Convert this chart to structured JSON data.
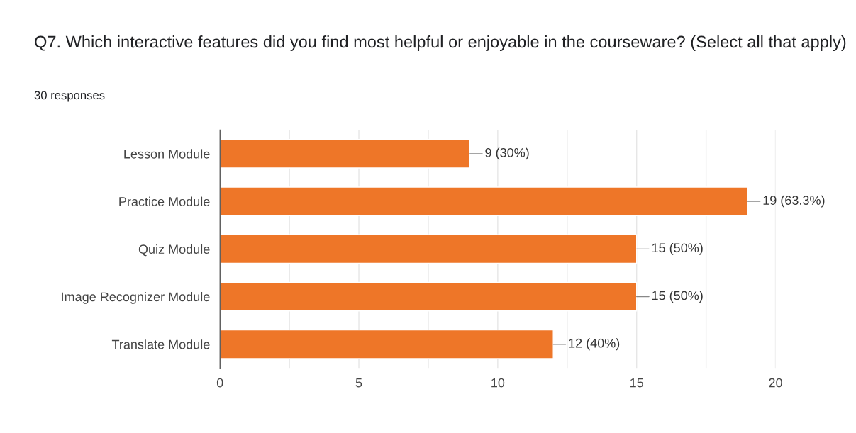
{
  "chart_data": {
    "type": "bar",
    "orientation": "horizontal",
    "title": "Q7. Which interactive features did you find most helpful or enjoyable in the courseware? (Select all that apply)",
    "subtitle": "30 responses",
    "categories": [
      "Lesson Module",
      "Practice Module",
      "Quiz Module",
      "Image Recognizer Module",
      "Translate Module"
    ],
    "values": [
      9,
      19,
      15,
      15,
      12
    ],
    "value_labels": [
      "9 (30%)",
      "19 (63.3%)",
      "15 (50%)",
      "15 (50%)",
      "12 (40%)"
    ],
    "color": "#ee7628",
    "xlim": [
      0,
      20
    ],
    "xticks": [
      0,
      {
        "value": 2.5,
        "label": null
      },
      5,
      {
        "value": 7.5,
        "label": null
      },
      10,
      {
        "value": 12.5,
        "label": null
      },
      15,
      {
        "value": 17.5,
        "label": null
      },
      20
    ],
    "grid": "x"
  }
}
